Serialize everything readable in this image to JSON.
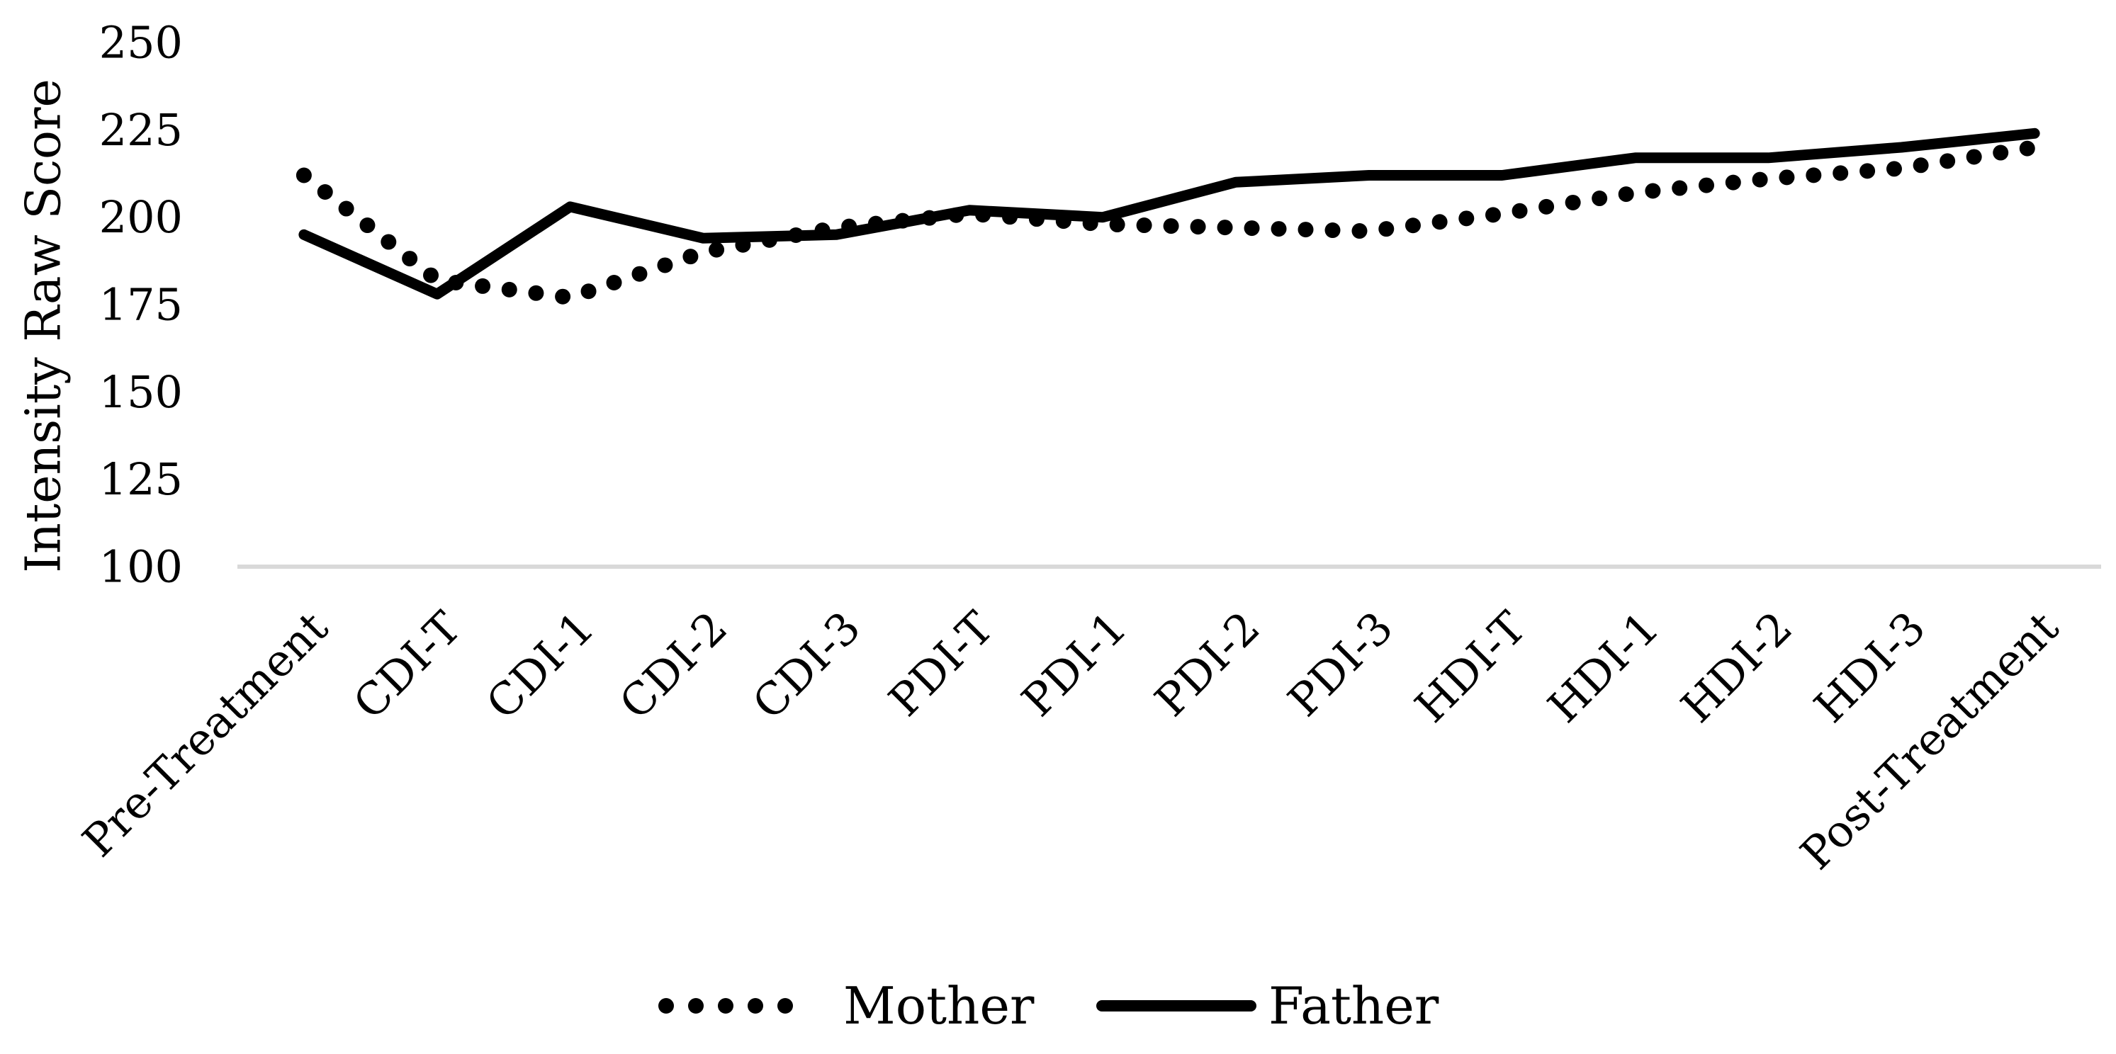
{
  "chart_data": {
    "type": "line",
    "title": "",
    "xlabel": "",
    "ylabel": "Intensity Raw Score",
    "ylim": [
      100,
      250
    ],
    "yticks": [
      100,
      125,
      150,
      175,
      200,
      225,
      250
    ],
    "categories": [
      "Pre-Treatment",
      "CDI-T",
      "CDI-1",
      "CDI-2",
      "CDI-3",
      "PDI-T",
      "PDI-1",
      "PDI-2",
      "PDI-3",
      "HDI-T",
      "HDI-1",
      "HDI-2",
      "HDI-3",
      "Post-Treatment"
    ],
    "series": [
      {
        "name": "Mother",
        "style": "dotted",
        "color": "#000000",
        "values": [
          212,
          182,
          177,
          190,
          197,
          201,
          198,
          197,
          196,
          201,
          207,
          211,
          214,
          220
        ]
      },
      {
        "name": "Father",
        "style": "solid",
        "color": "#000000",
        "values": [
          195,
          178,
          203,
          194,
          195,
          202,
          200,
          210,
          212,
          212,
          217,
          217,
          220,
          224
        ]
      }
    ],
    "grid": false,
    "baseline_color": "#d9d9d9",
    "legend_position": "bottom"
  }
}
